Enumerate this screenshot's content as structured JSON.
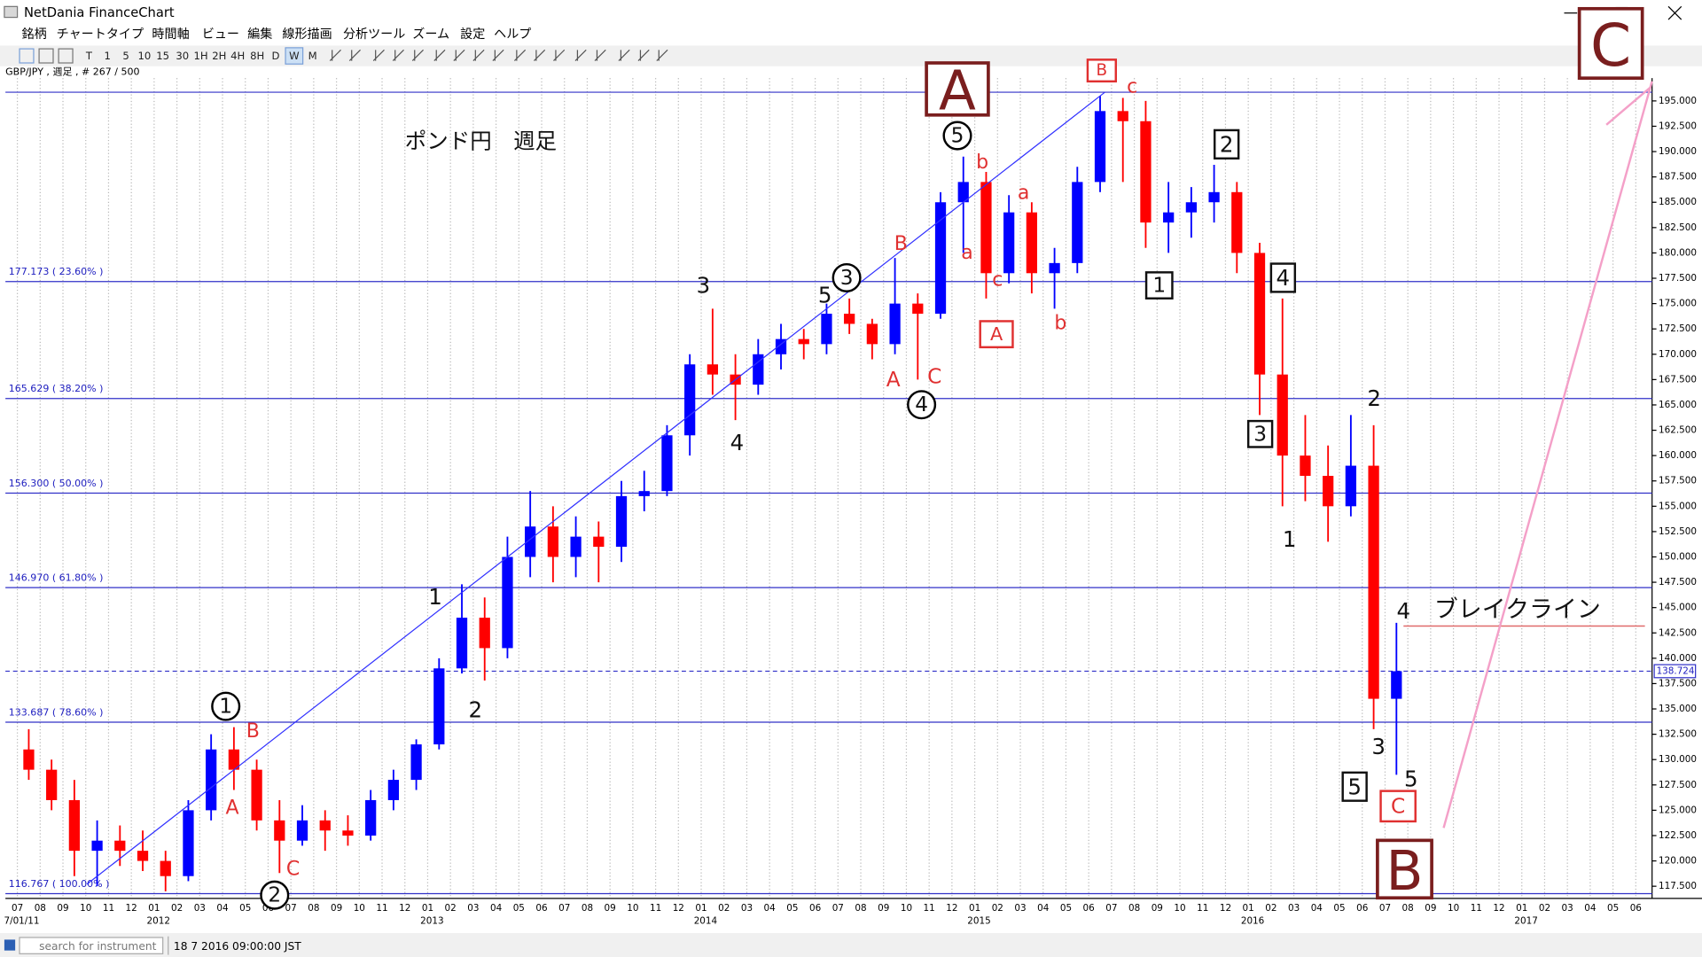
{
  "window": {
    "title": "NetDania FinanceChart"
  },
  "menu": [
    "銘柄",
    "チャートタイプ",
    "時間軸",
    "ビュー",
    "編集",
    "線形描画",
    "分析ツール",
    "ズーム",
    "設定",
    "ヘルプ"
  ],
  "toolbar": [
    "T",
    "1",
    "5",
    "10",
    "15",
    "30",
    "1H",
    "2H",
    "4H",
    "8H",
    "D",
    "W",
    "M"
  ],
  "chart_header": "GBP/JPY , 週足 , # 267 / 500",
  "chart_data": {
    "type": "candlestick",
    "categories": [
      "07",
      "08",
      "09",
      "10",
      "11",
      "12",
      "01",
      "02",
      "03",
      "04",
      "05",
      "06",
      "07",
      "08",
      "09",
      "10",
      "11",
      "12",
      "01",
      "02",
      "03",
      "04",
      "05",
      "06",
      "07",
      "08",
      "09",
      "10",
      "11",
      "12",
      "01",
      "02",
      "03",
      "04",
      "05",
      "06",
      "07",
      "08",
      "09",
      "10",
      "11",
      "12",
      "01",
      "02",
      "03",
      "04",
      "05",
      "06",
      "07",
      "08",
      "09",
      "10",
      "11",
      "12",
      "01",
      "02",
      "03",
      "04",
      "05",
      "06",
      "07",
      "08",
      "09",
      "10",
      "11",
      "12",
      "01",
      "02",
      "03",
      "04",
      "05",
      "06"
    ],
    "open": [
      131,
      129,
      126,
      121,
      122,
      121,
      120,
      118.5,
      125,
      131,
      129,
      124,
      122,
      124,
      123,
      122.5,
      126,
      128,
      131.5,
      139,
      144,
      141,
      150,
      153,
      150,
      152,
      151,
      156,
      156.5,
      162,
      169,
      168,
      167,
      170,
      171.5,
      171,
      174,
      173,
      171,
      175,
      174,
      185,
      187,
      178,
      184,
      178,
      179,
      187,
      194,
      193,
      183,
      184,
      185,
      186,
      180,
      168,
      160,
      158,
      155,
      159,
      136,
      null,
      null,
      null,
      null,
      null,
      null,
      null,
      null,
      null,
      null,
      null
    ],
    "high": [
      133,
      130,
      128,
      124,
      123.5,
      123,
      121,
      126,
      132.5,
      133.2,
      130,
      126,
      125.5,
      125,
      124.5,
      127,
      129,
      132,
      140,
      147.3,
      146,
      152,
      156.5,
      155,
      154,
      153.5,
      157.5,
      158.5,
      163,
      170,
      174.5,
      170,
      171.5,
      173,
      172.5,
      175,
      175.5,
      173.5,
      179.5,
      176,
      186,
      189.5,
      188,
      185.7,
      185,
      180.5,
      188.5,
      195.5,
      195.3,
      195,
      187,
      186.5,
      188.7,
      187,
      181,
      175.5,
      164,
      161,
      164,
      163,
      143.5,
      null,
      null,
      null,
      null,
      null,
      null,
      null,
      null,
      null,
      null,
      null
    ],
    "low": [
      128,
      125,
      118.5,
      117.5,
      119.5,
      119,
      117,
      118,
      124,
      127,
      123,
      118.8,
      121.5,
      121,
      121.5,
      122,
      125,
      127,
      131,
      138.5,
      137.8,
      140,
      148,
      147.5,
      148,
      147.5,
      149.5,
      154.5,
      156,
      160,
      166,
      163.5,
      166,
      168.5,
      169.5,
      170,
      172,
      169.5,
      170,
      167.5,
      173.5,
      180,
      175.5,
      177,
      176,
      174.5,
      178,
      186,
      187,
      180.5,
      180,
      181.5,
      183,
      178,
      164,
      155,
      155.5,
      151.5,
      154,
      133,
      128.5,
      null,
      null,
      null,
      null,
      null,
      null,
      null,
      null,
      null,
      null,
      null
    ],
    "close": [
      129,
      126,
      121,
      122,
      121,
      120,
      118.5,
      125,
      131,
      129,
      124,
      122,
      124,
      123,
      122.5,
      126,
      128,
      131.5,
      139,
      144,
      141,
      150,
      153,
      150,
      152,
      151,
      156,
      156.5,
      162,
      169,
      168,
      167,
      170,
      171.5,
      171,
      174,
      173,
      171,
      175,
      174,
      185,
      187,
      178,
      184,
      178,
      179,
      187,
      194,
      193,
      183,
      184,
      185,
      186,
      180,
      168,
      160,
      158,
      155,
      159,
      136,
      138.724,
      null,
      null,
      null,
      null,
      null,
      null,
      null,
      null,
      null,
      null,
      null
    ],
    "up_color": "#0000ff",
    "down_color": "#ff0000",
    "year_ticks": [
      {
        "value": 0,
        "label": "7/01/11"
      },
      {
        "value": 6,
        "label": "2012"
      },
      {
        "value": 18,
        "label": "2013"
      },
      {
        "value": 30,
        "label": "2014"
      },
      {
        "value": 42,
        "label": "2015"
      },
      {
        "value": 54,
        "label": "2016"
      },
      {
        "value": 66,
        "label": "2017"
      }
    ],
    "ylim": [
      116.3,
      197.25
    ],
    "yticks": [
      {
        "value": 117.5,
        "label": "117.500"
      },
      {
        "value": 120,
        "label": "120.000"
      },
      {
        "value": 122.5,
        "label": "122.500"
      },
      {
        "value": 125,
        "label": "125.000"
      },
      {
        "value": 127.5,
        "label": "127.500"
      },
      {
        "value": 130,
        "label": "130.000"
      },
      {
        "value": 132.5,
        "label": "132.500"
      },
      {
        "value": 135,
        "label": "135.000"
      },
      {
        "value": 137.5,
        "label": "137.500"
      },
      {
        "value": 140,
        "label": "140.000"
      },
      {
        "value": 142.5,
        "label": "142.500"
      },
      {
        "value": 145,
        "label": "145.000"
      },
      {
        "value": 147.5,
        "label": "147.500"
      },
      {
        "value": 150,
        "label": "150.000"
      },
      {
        "value": 152.5,
        "label": "152.500"
      },
      {
        "value": 155,
        "label": "155.000"
      },
      {
        "value": 157.5,
        "label": "157.500"
      },
      {
        "value": 160,
        "label": "160.000"
      },
      {
        "value": 162.5,
        "label": "162.500"
      },
      {
        "value": 165,
        "label": "165.000"
      },
      {
        "value": 167.5,
        "label": "167.500"
      },
      {
        "value": 170,
        "label": "170.000"
      },
      {
        "value": 172.5,
        "label": "172.500"
      },
      {
        "value": 175,
        "label": "175.000"
      },
      {
        "value": 177.5,
        "label": "177.500"
      },
      {
        "value": 180,
        "label": "180.000"
      },
      {
        "value": 182.5,
        "label": "182.500"
      },
      {
        "value": 185,
        "label": "185.000"
      },
      {
        "value": 187.5,
        "label": "187.500"
      },
      {
        "value": 190,
        "label": "190.000"
      },
      {
        "value": 192.5,
        "label": "192.500"
      },
      {
        "value": 195,
        "label": "195.000"
      }
    ],
    "grid": {
      "x": true,
      "y": false
    },
    "fib_levels": [
      {
        "value": 177.173,
        "label": "177.173 ( 23.60% )"
      },
      {
        "value": 165.629,
        "label": "165.629 ( 38.20% )"
      },
      {
        "value": 156.3,
        "label": "156.300 ( 50.00% )"
      },
      {
        "value": 146.97,
        "label": "146.970 ( 61.80% )"
      },
      {
        "value": 133.687,
        "label": "133.687 ( 78.60% )"
      },
      {
        "value": 116.767,
        "label": "116.767 ( 100.00% )"
      }
    ],
    "swing_high_line": 195.86,
    "last_price": 138.724,
    "trendline": {
      "x": [
        3.05,
        47.71
      ],
      "y": [
        117.7,
        195.86
      ],
      "color": "#3030ff"
    },
    "projection_line": {
      "x": [
        62.57,
        71.71
      ],
      "y": [
        123.26,
        196.93
      ],
      "color": "#f4a0c8"
    },
    "break_line": {
      "x": [
        60.81,
        71.4
      ],
      "y": [
        143.18,
        143.18
      ],
      "color": "#e06a6a"
    },
    "annotations": [
      "A",
      "B",
      "c",
      "ポンド円　週足",
      "5",
      "b",
      "2",
      "a",
      "a",
      "B",
      "3",
      "5",
      "3",
      "c",
      "1",
      "4",
      "A",
      "b",
      "A",
      "C",
      "4",
      "4",
      "3",
      "2",
      "1",
      "1",
      "4",
      "ブレイクライン",
      "2",
      "1",
      "B",
      "A",
      "C",
      "2",
      "3",
      "5",
      "5",
      "C",
      "B",
      "C"
    ]
  },
  "status_bar": {
    "search_placeholder": "search for instrument",
    "timestamp": "18 7 2016 09:00:00 JST"
  }
}
